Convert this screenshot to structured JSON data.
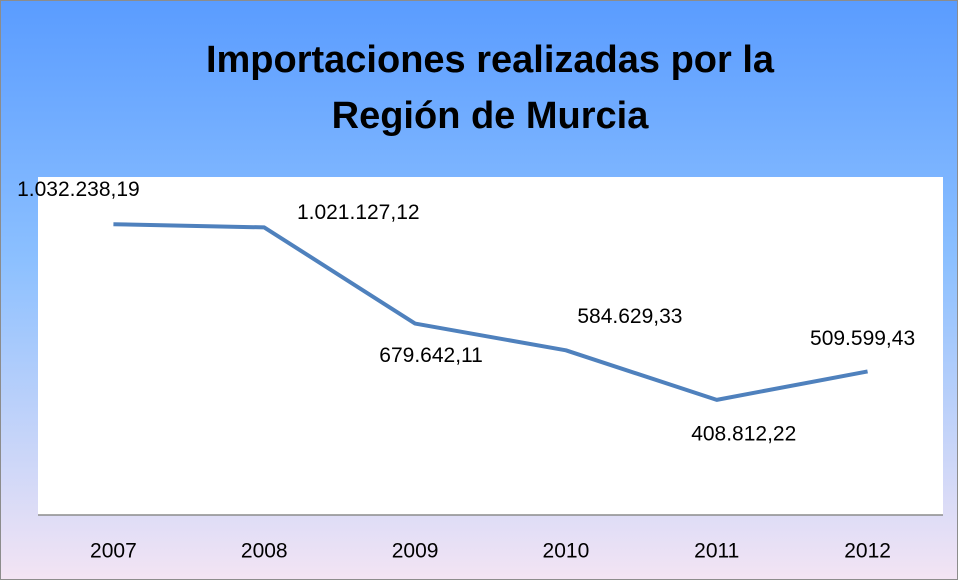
{
  "chart_data": {
    "type": "line",
    "title": [
      "Importaciones realizadas por la",
      "Región de Murcia"
    ],
    "categories": [
      "2007",
      "2008",
      "2009",
      "2010",
      "2011",
      "2012"
    ],
    "values": [
      1032238.19,
      1021127.12,
      679642.11,
      584629.33,
      408812.22,
      509599.43
    ],
    "value_labels": [
      "1.032.238,19",
      "1.021.127,12",
      "679.642,11",
      "584.629,33",
      "408.812,22",
      "509.599,43"
    ],
    "color": "#4f81bd",
    "ylim": [
      0,
      1200000
    ]
  }
}
